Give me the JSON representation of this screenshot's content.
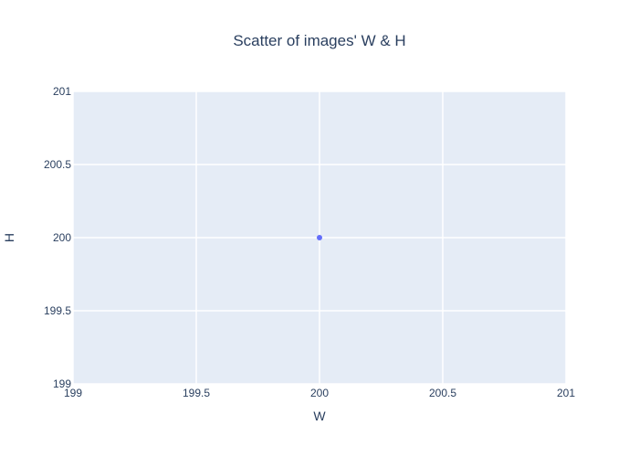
{
  "chart_data": {
    "type": "scatter",
    "title": "Scatter of images' W & H",
    "xlabel": "W",
    "ylabel": "H",
    "xlim": [
      199,
      201
    ],
    "ylim": [
      199,
      201
    ],
    "x_ticks": [
      "199",
      "199.5",
      "200",
      "200.5",
      "201"
    ],
    "y_ticks": [
      "199",
      "199.5",
      "200",
      "200.5",
      "201"
    ],
    "grid": true,
    "series": [
      {
        "x": [
          200
        ],
        "y": [
          200
        ]
      }
    ],
    "colors": {
      "plot_background": "#e5ecf6",
      "grid": "#ffffff",
      "marker": "#636efa",
      "text": "#2a3f5f"
    }
  }
}
